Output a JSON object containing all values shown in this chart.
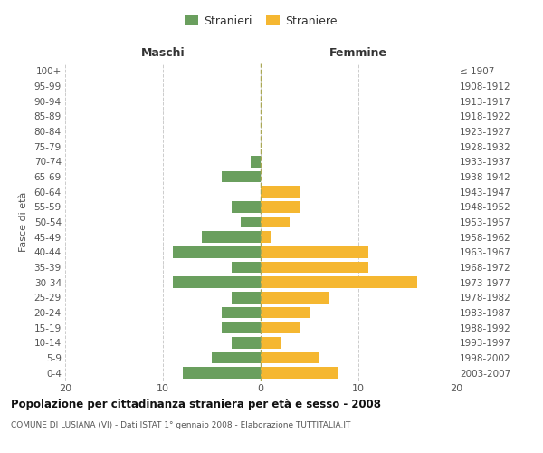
{
  "age_groups": [
    "0-4",
    "5-9",
    "10-14",
    "15-19",
    "20-24",
    "25-29",
    "30-34",
    "35-39",
    "40-44",
    "45-49",
    "50-54",
    "55-59",
    "60-64",
    "65-69",
    "70-74",
    "75-79",
    "80-84",
    "85-89",
    "90-94",
    "95-99",
    "100+"
  ],
  "birth_years": [
    "2003-2007",
    "1998-2002",
    "1993-1997",
    "1988-1992",
    "1983-1987",
    "1978-1982",
    "1973-1977",
    "1968-1972",
    "1963-1967",
    "1958-1962",
    "1953-1957",
    "1948-1952",
    "1943-1947",
    "1938-1942",
    "1933-1937",
    "1928-1932",
    "1923-1927",
    "1918-1922",
    "1913-1917",
    "1908-1912",
    "≤ 1907"
  ],
  "maschi": [
    8,
    5,
    3,
    4,
    4,
    3,
    9,
    3,
    9,
    6,
    2,
    3,
    0,
    4,
    1,
    0,
    0,
    0,
    0,
    0,
    0
  ],
  "femmine": [
    8,
    6,
    2,
    4,
    5,
    7,
    16,
    11,
    11,
    1,
    3,
    4,
    4,
    0,
    0,
    0,
    0,
    0,
    0,
    0,
    0
  ],
  "color_maschi": "#6a9f5e",
  "color_femmine": "#f5b731",
  "title": "Popolazione per cittadinanza straniera per età e sesso - 2008",
  "subtitle": "COMUNE DI LUSIANA (VI) - Dati ISTAT 1° gennaio 2008 - Elaborazione TUTTITALIA.IT",
  "header_left": "Maschi",
  "header_right": "Femmine",
  "ylabel_left": "Fasce di età",
  "legend_maschi": "Stranieri",
  "legend_femmine": "Straniere",
  "xlim": 20,
  "background_color": "#ffffff",
  "grid_color": "#cccccc"
}
